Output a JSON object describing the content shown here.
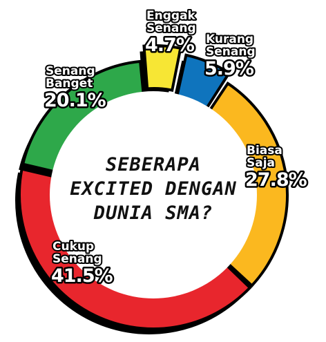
{
  "chart_data": {
    "type": "pie",
    "title": "SEBERAPA EXCITED DENGAN DUNIA SMA?",
    "title_lines": [
      "SEBERAPA",
      "EXCITED DENGAN",
      "DUNIA SMA?"
    ],
    "slices": [
      {
        "label_lines": [
          "Enggak",
          "Senang"
        ],
        "value": 4.7,
        "value_text": "4.7%",
        "color": "#f7e634"
      },
      {
        "label_lines": [
          "Kurang",
          "Senang"
        ],
        "value": 5.9,
        "value_text": "5.9%",
        "color": "#0f74bd"
      },
      {
        "label_lines": [
          "Biasa",
          "Saja"
        ],
        "value": 27.8,
        "value_text": "27.8%",
        "color": "#fbb81f"
      },
      {
        "label_lines": [
          "Cukup",
          "Senang"
        ],
        "value": 41.5,
        "value_text": "41.5%",
        "color": "#e8262d"
      },
      {
        "label_lines": [
          "Senang",
          "Banget"
        ],
        "value": 20.1,
        "value_text": "20.1%",
        "color": "#2ea84a"
      }
    ]
  }
}
